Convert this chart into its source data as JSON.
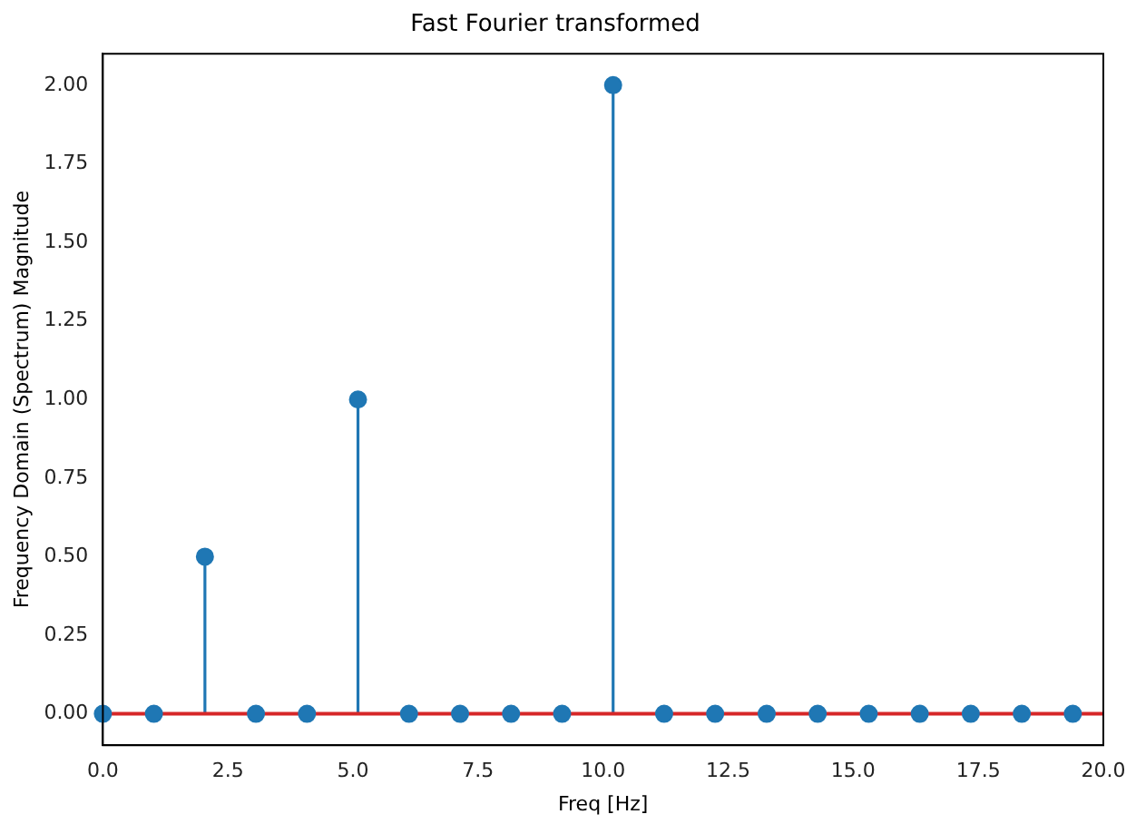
{
  "chart_data": {
    "type": "lollipop",
    "title": "Fast Fourier transformed",
    "xlabel": "Freq [Hz]",
    "ylabel": "Frequency Domain (Spectrum) Magnitude",
    "x": [
      0,
      1.02,
      2.04,
      3.06,
      4.08,
      5.1,
      6.12,
      7.14,
      8.16,
      9.18,
      10.2,
      11.22,
      12.24,
      13.27,
      14.29,
      15.31,
      16.33,
      17.35,
      18.37,
      19.39
    ],
    "values": [
      0,
      0,
      0.5,
      0,
      0,
      1,
      0,
      0,
      0,
      0,
      2,
      0,
      0,
      0,
      0,
      0,
      0,
      0,
      0,
      0
    ],
    "color": "#1f77b4",
    "marker": "circle",
    "grid": false,
    "legend": false,
    "xlim": [
      0,
      20
    ],
    "xticks": [
      {
        "value": 0,
        "label": "0.0"
      },
      {
        "value": 2.5,
        "label": "2.5"
      },
      {
        "value": 5,
        "label": "5.0"
      },
      {
        "value": 7.5,
        "label": "7.5"
      },
      {
        "value": 10,
        "label": "10.0"
      },
      {
        "value": 12.5,
        "label": "12.5"
      },
      {
        "value": 15,
        "label": "15.0"
      },
      {
        "value": 17.5,
        "label": "17.5"
      },
      {
        "value": 20,
        "label": "20.0"
      }
    ],
    "ylim": [
      -0.1,
      2.1
    ],
    "yticks": [
      {
        "value": 0,
        "label": "0.00"
      },
      {
        "value": 0.25,
        "label": "0.25"
      },
      {
        "value": 0.5,
        "label": "0.50"
      },
      {
        "value": 0.75,
        "label": "0.75"
      },
      {
        "value": 1,
        "label": "1.00"
      },
      {
        "value": 1.25,
        "label": "1.25"
      },
      {
        "value": 1.5,
        "label": "1.50"
      },
      {
        "value": 1.75,
        "label": "1.75"
      },
      {
        "value": 2,
        "label": "2.00"
      }
    ],
    "ref_lines": [
      {
        "axis": "y",
        "value": 0,
        "color": "#d62728"
      }
    ]
  }
}
